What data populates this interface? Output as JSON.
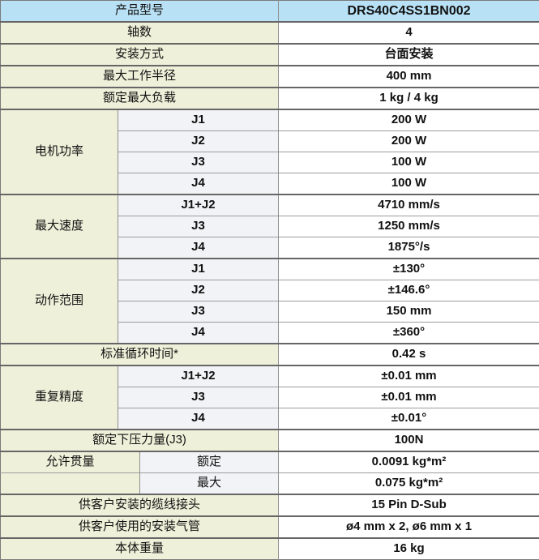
{
  "colors": {
    "header_bg": "#b9e1f5",
    "label_bg": "#eef0d9",
    "sublabel_bg": "#f2f3f6",
    "value_bg": "#ffffff",
    "section_border": "#666666",
    "row_border": "#9c9c9c"
  },
  "table": {
    "sections": [
      {
        "type": "header",
        "label": "产品型号",
        "value": "DRS40C4SS1BN002"
      },
      {
        "type": "single",
        "label": "轴数",
        "value": "4"
      },
      {
        "type": "single",
        "label": "安装方式",
        "value": "台面安装"
      },
      {
        "type": "single",
        "label": "最大工作半径",
        "value": "400 mm"
      },
      {
        "type": "single",
        "label": "额定最大负载",
        "value": "1 kg / 4 kg"
      },
      {
        "type": "group",
        "label": "电机功率",
        "rows": [
          {
            "sub": "J1",
            "value": "200 W"
          },
          {
            "sub": "J2",
            "value": "200 W"
          },
          {
            "sub": "J3",
            "value": "100 W"
          },
          {
            "sub": "J4",
            "value": "100 W"
          }
        ]
      },
      {
        "type": "group",
        "label": "最大速度",
        "rows": [
          {
            "sub": "J1+J2",
            "value": "4710 mm/s"
          },
          {
            "sub": "J3",
            "value": "1250 mm/s"
          },
          {
            "sub": "J4",
            "value": "1875°/s"
          }
        ]
      },
      {
        "type": "group",
        "label": "动作范围",
        "rows": [
          {
            "sub": "J1",
            "value": "±130°"
          },
          {
            "sub": "J2",
            "value": "±146.6°"
          },
          {
            "sub": "J3",
            "value": "150 mm"
          },
          {
            "sub": "J4",
            "value": "±360°"
          }
        ]
      },
      {
        "type": "single",
        "label": "标准循环时间*",
        "value": "0.42 s"
      },
      {
        "type": "group",
        "label": "重复精度",
        "rows": [
          {
            "sub": "J1+J2",
            "value": "±0.01 mm"
          },
          {
            "sub": "J3",
            "value": "±0.01 mm"
          },
          {
            "sub": "J4",
            "value": "±0.01°"
          }
        ]
      },
      {
        "type": "single",
        "label": "额定下压力量(J3)",
        "value": "100N"
      },
      {
        "type": "group-cjk",
        "label": "允许贯量",
        "rows": [
          {
            "sub": "额定",
            "value": "0.0091 kg*m²"
          },
          {
            "sub": "最大",
            "value": "0.075 kg*m²"
          }
        ]
      },
      {
        "type": "single",
        "label": "供客户安装的缆线接头",
        "value": "15 Pin D-Sub"
      },
      {
        "type": "single",
        "label": "供客户使用的安装气管",
        "value": "ø4 mm x 2, ø6 mm x 1"
      },
      {
        "type": "single",
        "label": "本体重量",
        "value": "16 kg"
      }
    ]
  }
}
